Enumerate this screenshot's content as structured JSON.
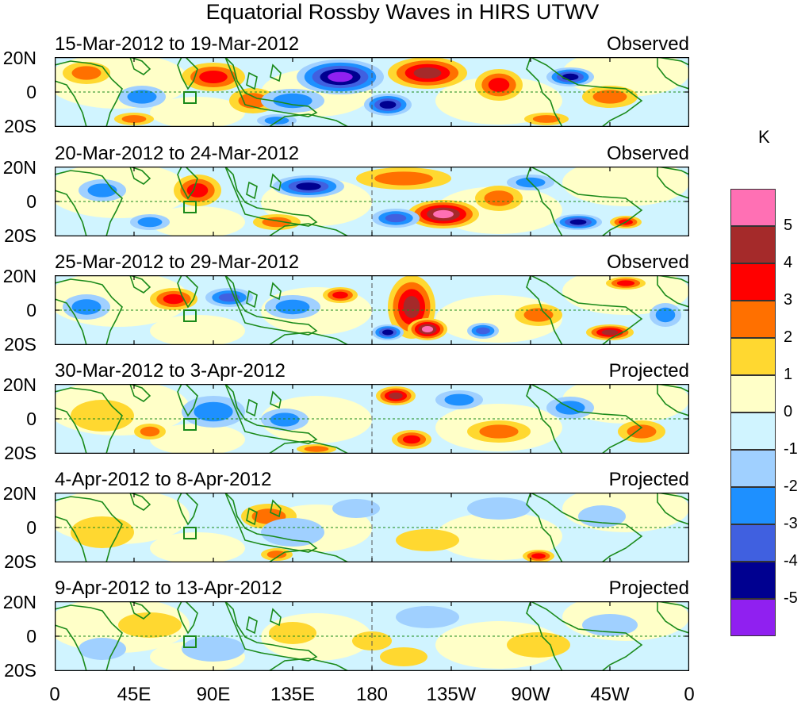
{
  "title": "Equatorial Rossby Waves in HIRS UTWV",
  "panels": [
    {
      "period": "15-Mar-2012 to 19-Mar-2012",
      "status": "Observed"
    },
    {
      "period": "20-Mar-2012 to 24-Mar-2012",
      "status": "Observed"
    },
    {
      "period": "25-Mar-2012 to 29-Mar-2012",
      "status": "Observed"
    },
    {
      "period": "30-Mar-2012 to 3-Apr-2012",
      "status": "Projected"
    },
    {
      "period": "4-Apr-2012 to 8-Apr-2012",
      "status": "Projected"
    },
    {
      "period": "9-Apr-2012 to 13-Apr-2012",
      "status": "Projected"
    }
  ],
  "lat_labels": [
    "20N",
    "0",
    "20S"
  ],
  "lon_labels": [
    "0",
    "45E",
    "90E",
    "135E",
    "180",
    "135W",
    "90W",
    "45W",
    "0"
  ],
  "colorbar": {
    "unit": "K",
    "ticks": [
      "5",
      "4",
      "3",
      "2",
      "1",
      "0",
      "-1",
      "-2",
      "-3",
      "-4",
      "-5"
    ],
    "colors": [
      "#ff70b4",
      "#a52a2a",
      "#ff0000",
      "#ff7000",
      "#ffd830",
      "#ffffc8",
      "#d0f4ff",
      "#a0d0ff",
      "#1e90ff",
      "#4060e0",
      "#000090",
      "#9020f0"
    ]
  },
  "map_style": {
    "coast": "#1a8a1a",
    "grid": "#1a8a1a"
  }
}
